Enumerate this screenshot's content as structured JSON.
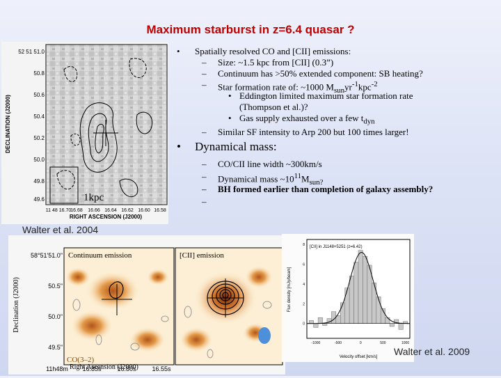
{
  "title": "Maximum starburst in z=6.4 quasar ?",
  "bullet1": {
    "marker": "•",
    "text": "Spatially resolved CO and [CII] emissions:",
    "sub": [
      {
        "marker": "–",
        "text": "Size: ~1.5 kpc from [CII] (0.3”)"
      },
      {
        "marker": "–",
        "text": "Continuum has >50% extended component: SB heating?"
      },
      {
        "marker": "–",
        "text": "Star formation rate of: ~1000 M",
        "sub1": "sun",
        "mid": "yr",
        "sup1": "-1",
        "mid2": "kpc",
        "sup2": "-2"
      }
    ],
    "subsub": [
      {
        "marker": "•",
        "text": "Eddington limited maximum star formation rate"
      },
      {
        "marker": "",
        "text": "(Thompson et al.)?"
      },
      {
        "marker": "•",
        "text": "Gas supply exhausted over a few t",
        "sub1": "dyn"
      }
    ],
    "last": {
      "marker": "–",
      "text": "Similar SF intensity to Arp 200 but 100 times larger!"
    }
  },
  "bullet2": {
    "marker": "•",
    "text": "Dynamical mass:",
    "sub": [
      {
        "marker": "–",
        "text": "CO/CII line width ~300km/s"
      },
      {
        "marker": "–",
        "text": "Dynamical mass ~10",
        "sup1": "11",
        "text2": "M",
        "sub1": "sun?"
      },
      {
        "marker": "–",
        "text": "BH formed earlier than completion of galaxy assembly?"
      },
      {
        "marker": "–",
        "text": ""
      }
    ]
  },
  "contour_plot": {
    "ylabel": "DECLINATION (J2000)",
    "xlabel": "RIGHT ASCENSION (J2000)",
    "yticks": [
      "52 51 51.0",
      "50.8",
      "50.6",
      "50.4",
      "50.2",
      "50.0",
      "49.8",
      "49.6"
    ],
    "xticks": [
      "11 48 16.70",
      "16.68",
      "16.66",
      "16.64",
      "16.62",
      "16.60",
      "16.58"
    ],
    "scale_label": "1kpc"
  },
  "credit_2004": "Walter et al. 2004",
  "bottom_maps": {
    "left_title": "Continuum emission",
    "right_title": "[CII] emission",
    "corner_label": "CO(3–2)",
    "ylabel": "Declination (J2000)",
    "xlabel": "Right Ascension (J2000)",
    "yticks": [
      "58°51'51.0\"",
      "50.5\"",
      "50.0\"",
      "49.5\""
    ],
    "xticks": [
      "11h48m",
      "16.85s",
      "16.80s",
      "16.55s"
    ]
  },
  "spectrum": {
    "title": "[CII] in J1148+5251 (z=6.42)",
    "ylabel": "Flux density [mJy/beam]",
    "xlabel": "Velocity offset [km/s]",
    "xticks": [
      "-1000",
      "-500",
      "0",
      "500",
      "1000"
    ],
    "yticks": [
      "0",
      "2",
      "4",
      "6",
      "8"
    ],
    "chart_data": {
      "type": "bar",
      "title": "[CII] in J1148+5251 (z=6.42)",
      "xlabel": "Velocity offset [km/s]",
      "ylabel": "Flux density [mJy/beam]",
      "x": [
        -1100,
        -1000,
        -900,
        -800,
        -700,
        -600,
        -500,
        -400,
        -300,
        -200,
        -100,
        0,
        100,
        200,
        300,
        400,
        500,
        600,
        700,
        800,
        900,
        1000
      ],
      "values": [
        0.3,
        -0.4,
        0.6,
        -0.2,
        0.5,
        1.2,
        0.8,
        2.1,
        3.6,
        4.8,
        6.2,
        7.4,
        6.8,
        5.9,
        4.1,
        2.7,
        1.5,
        0.6,
        -0.3,
        0.4,
        -0.6,
        0.2
      ],
      "fit": "gaussian",
      "ylim": [
        -1.5,
        8.5
      ],
      "xlim": [
        -1200,
        1100
      ]
    }
  },
  "credit_2009": "Walter et al. 2009",
  "colors": {
    "title": "#c00000"
  }
}
